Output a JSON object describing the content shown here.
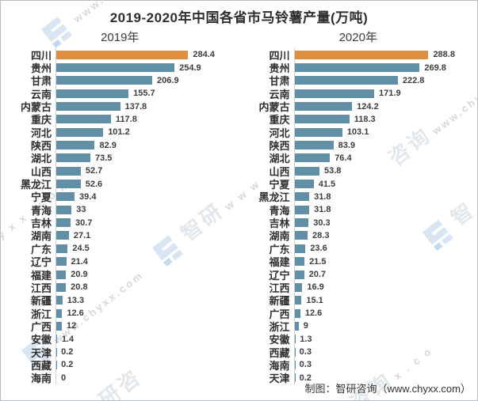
{
  "title": "2019-2020年中国各省市马铃薯产量(万吨)",
  "footer": "制图：智研咨询（www.chyxx.com）",
  "watermark": {
    "text": "www.chyxx.com",
    "brand": "智研咨询"
  },
  "colors": {
    "highlight": "#DF8F3E",
    "bar": "#618FA5",
    "axis": "#CCD4D9"
  },
  "chart_data": [
    {
      "type": "bar",
      "orientation": "horizontal",
      "title": "2019年",
      "unit": "万吨",
      "xlim": [
        0,
        300
      ],
      "grid": false,
      "legend": "none",
      "highlight_category": "四川",
      "categories": [
        "四川",
        "贵州",
        "甘肃",
        "云南",
        "内蒙古",
        "重庆",
        "河北",
        "陕西",
        "湖北",
        "山西",
        "黑龙江",
        "宁夏",
        "青海",
        "吉林",
        "湖南",
        "广东",
        "辽宁",
        "福建",
        "江西",
        "新疆",
        "浙江",
        "广西",
        "安徽",
        "天津",
        "西藏",
        "海南"
      ],
      "values": [
        284.4,
        254.9,
        206.9,
        155.7,
        137.8,
        117.8,
        101.2,
        82.9,
        73.5,
        52.7,
        52.6,
        39.4,
        33,
        30.7,
        27.1,
        24.5,
        21.4,
        20.9,
        20.8,
        13.3,
        12.6,
        12,
        1.4,
        0.2,
        0.2,
        0
      ]
    },
    {
      "type": "bar",
      "orientation": "horizontal",
      "title": "2020年",
      "unit": "万吨",
      "xlim": [
        0,
        300
      ],
      "grid": false,
      "legend": "none",
      "highlight_category": "四川",
      "categories": [
        "四川",
        "贵州",
        "甘肃",
        "云南",
        "内蒙古",
        "重庆",
        "河北",
        "陕西",
        "湖北",
        "山西",
        "宁夏",
        "黑龙江",
        "青海",
        "吉林",
        "湖南",
        "广东",
        "福建",
        "辽宁",
        "江西",
        "新疆",
        "广西",
        "浙江",
        "安徽",
        "西藏",
        "海南",
        "天津"
      ],
      "values": [
        288.8,
        269.8,
        222.8,
        171.9,
        124.2,
        118.3,
        103.1,
        83.9,
        76.4,
        53.8,
        41.5,
        31.8,
        31.8,
        30.3,
        28.3,
        23.6,
        21.5,
        20.7,
        16.9,
        15.1,
        12.6,
        9,
        1.3,
        0.3,
        0.3,
        0.2
      ]
    }
  ]
}
